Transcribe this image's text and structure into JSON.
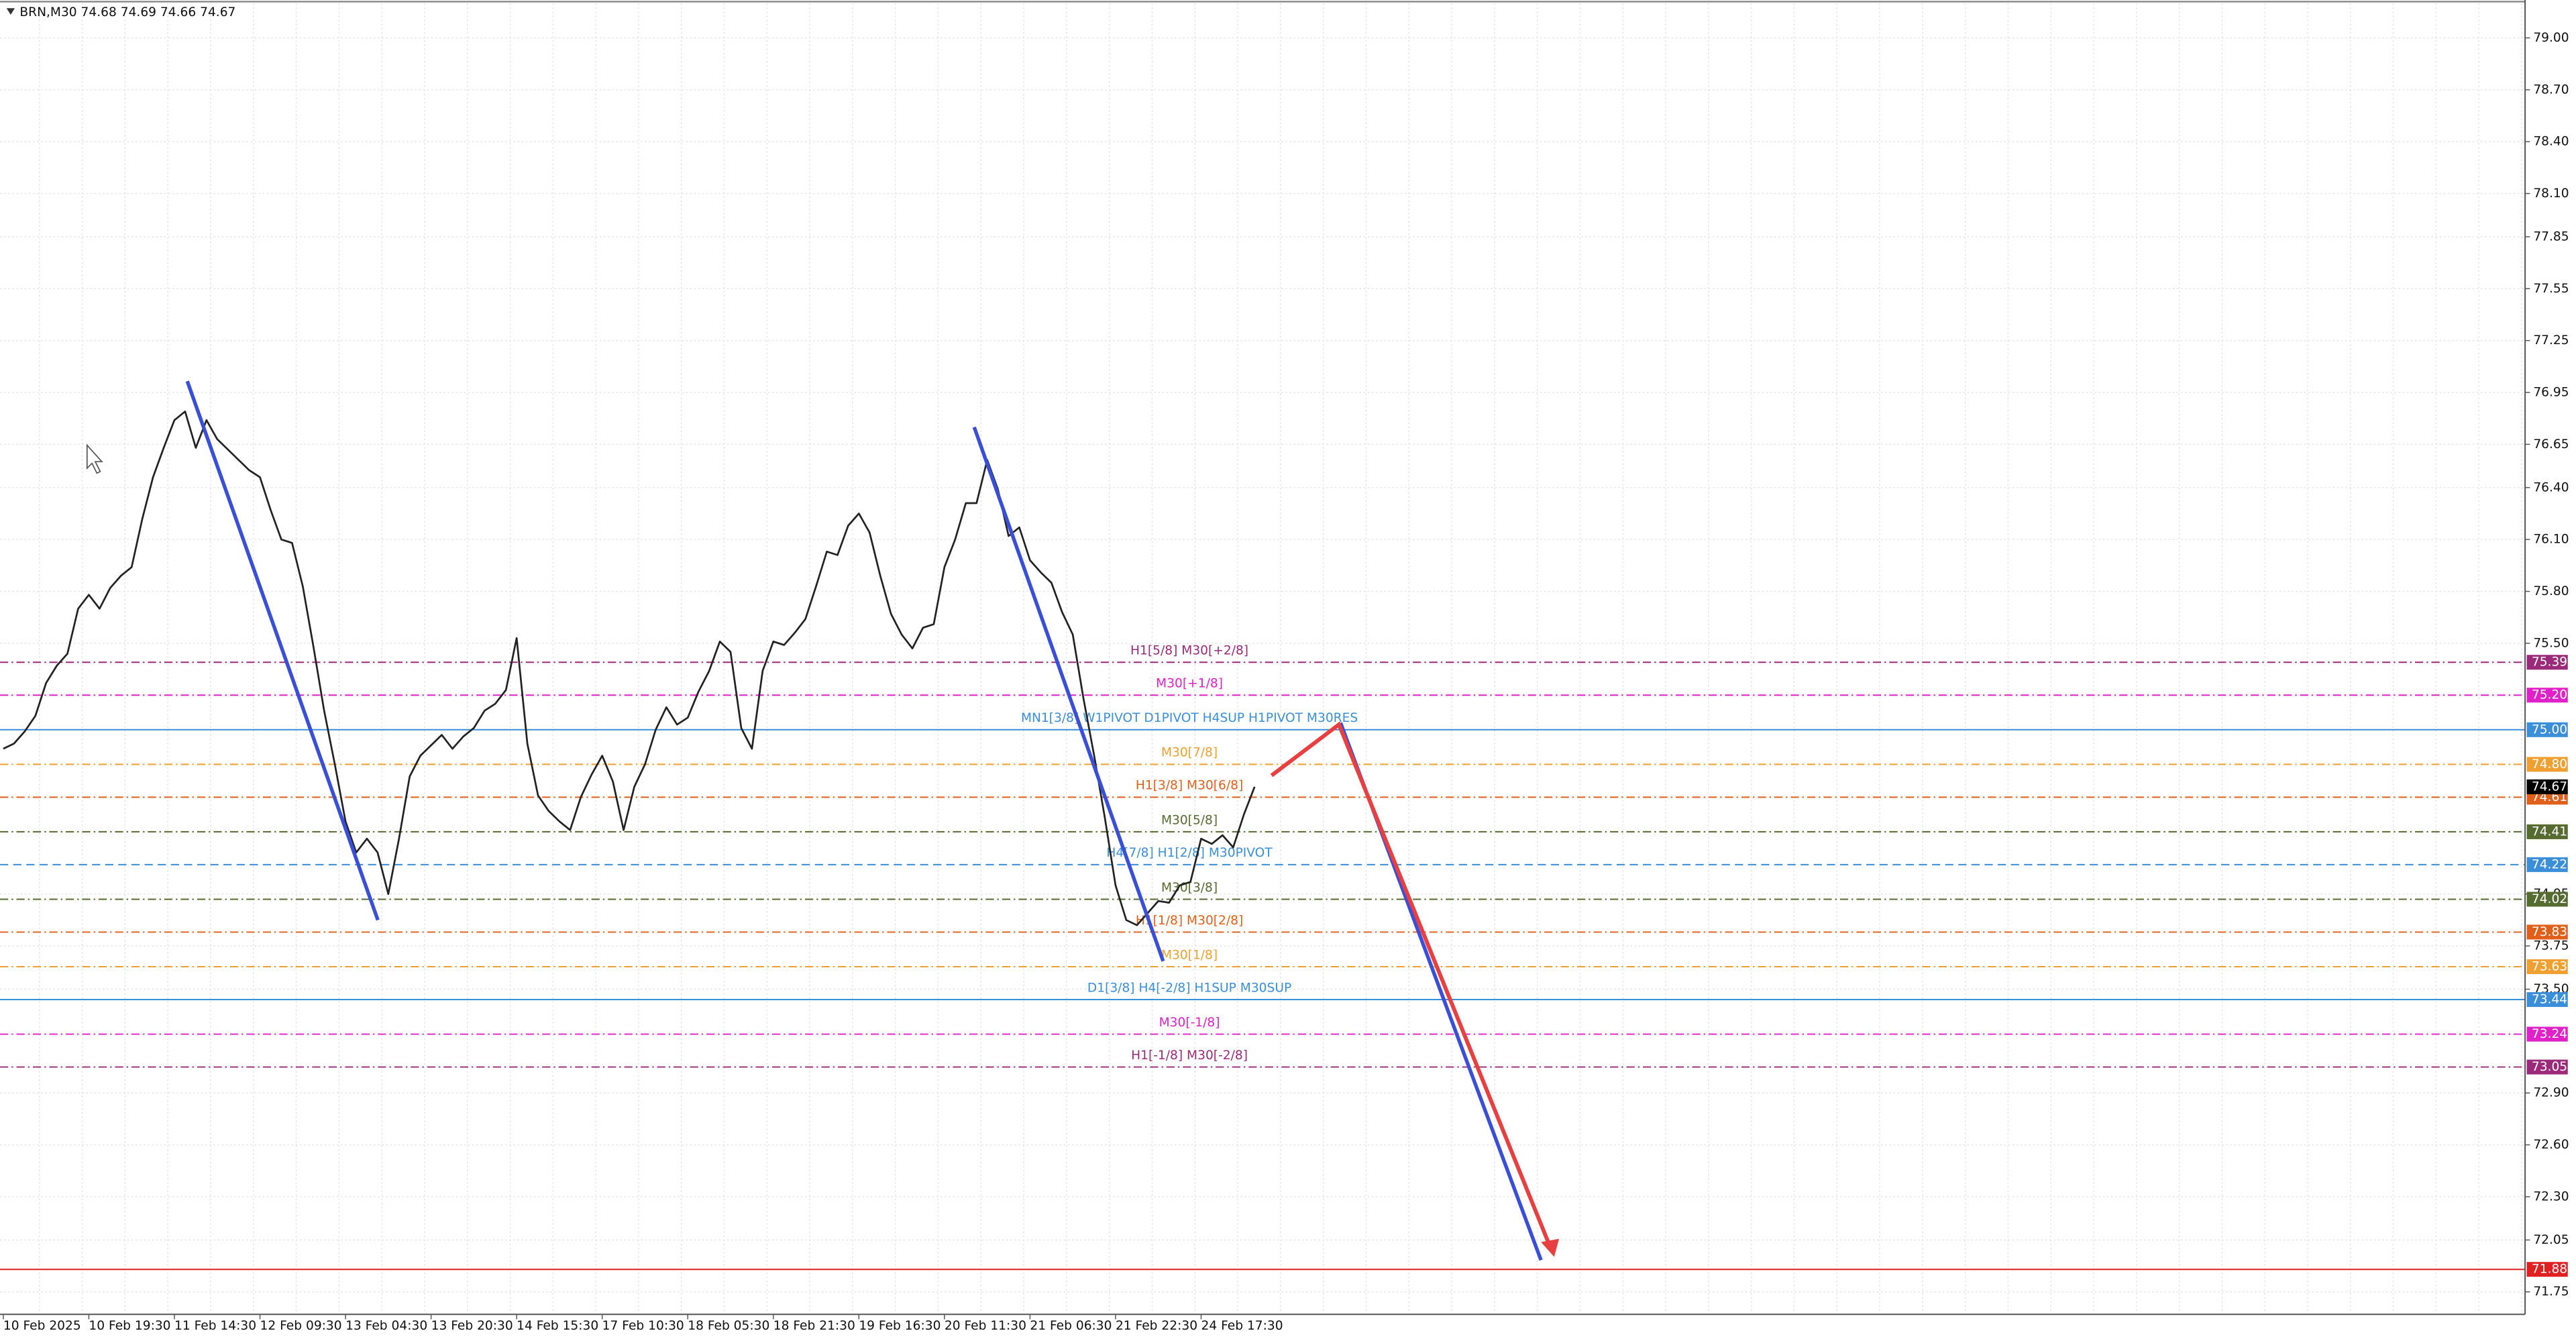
{
  "chart_data": {
    "type": "line",
    "title": "BRN,M30 74.68 74.69 74.66 74.67",
    "categories": [
      "10 Feb 2025",
      null,
      null,
      null,
      null,
      null,
      null,
      null,
      "10 Feb 19:30",
      null,
      null,
      null,
      null,
      null,
      null,
      null,
      "11 Feb 14:30",
      null,
      null,
      null,
      null,
      null,
      null,
      null,
      "12 Feb 09:30",
      null,
      null,
      null,
      null,
      null,
      null,
      null,
      "13 Feb 04:30",
      null,
      null,
      null,
      null,
      null,
      null,
      null,
      "13 Feb 20:30",
      null,
      null,
      null,
      null,
      null,
      null,
      null,
      "14 Feb 15:30",
      null,
      null,
      null,
      null,
      null,
      null,
      null,
      "17 Feb 10:30",
      null,
      null,
      null,
      null,
      null,
      null,
      null,
      "18 Feb 05:30",
      null,
      null,
      null,
      null,
      null,
      null,
      null,
      "18 Feb 21:30",
      null,
      null,
      null,
      null,
      null,
      null,
      null,
      "19 Feb 16:30",
      null,
      null,
      null,
      null,
      null,
      null,
      null,
      "20 Feb 11:30",
      null,
      null,
      null,
      null,
      null,
      null,
      null,
      "21 Feb 06:30",
      null,
      null,
      null,
      null,
      null,
      null,
      null,
      "21 Feb 22:30",
      null,
      null,
      null,
      null,
      null,
      null,
      null,
      "24 Feb 17:30",
      null,
      null,
      null,
      null,
      null
    ],
    "series": [
      {
        "name": "BRN",
        "color": "#222222",
        "values": [
          74.89,
          74.92,
          74.99,
          75.08,
          75.27,
          75.37,
          75.44,
          75.7,
          75.78,
          75.7,
          75.82,
          75.89,
          75.94,
          76.22,
          76.46,
          76.63,
          76.79,
          76.84,
          76.63,
          76.79,
          76.68,
          76.62,
          76.56,
          76.5,
          76.46,
          76.27,
          76.1,
          76.08,
          75.83,
          75.48,
          75.11,
          74.8,
          74.47,
          74.29,
          74.37,
          74.29,
          74.05,
          74.37,
          74.73,
          74.85,
          74.91,
          74.97,
          74.89,
          74.96,
          75.01,
          75.11,
          75.15,
          75.23,
          75.53,
          74.92,
          74.62,
          74.53,
          74.47,
          74.42,
          74.61,
          74.74,
          74.85,
          74.7,
          74.42,
          74.67,
          74.8,
          75.0,
          75.13,
          75.03,
          75.07,
          75.22,
          75.34,
          75.51,
          75.45,
          75.01,
          74.89,
          75.34,
          75.51,
          75.49,
          75.56,
          75.64,
          75.83,
          76.03,
          76.01,
          76.18,
          76.25,
          76.14,
          75.89,
          75.67,
          75.55,
          75.47,
          75.59,
          75.61,
          75.94,
          76.1,
          76.31,
          76.31,
          76.56,
          76.39,
          76.12,
          76.17,
          75.98,
          75.91,
          75.85,
          75.68,
          75.55,
          75.18,
          74.85,
          74.49,
          74.1,
          73.9,
          73.87,
          73.94,
          74.01,
          74.0,
          74.1,
          74.12,
          74.37,
          74.34,
          74.39,
          74.32,
          74.51,
          74.67
        ]
      }
    ],
    "ylim": [
      71.62,
      79.2
    ],
    "yticks": [
      {
        "value": 79,
        "label": "79.00"
      },
      {
        "value": 78.7,
        "label": "78.70"
      },
      {
        "value": 78.4,
        "label": "78.40"
      },
      {
        "value": 78.1,
        "label": "78.10"
      },
      {
        "value": 77.85,
        "label": "77.85"
      },
      {
        "value": 77.55,
        "label": "77.55"
      },
      {
        "value": 77.25,
        "label": "77.25"
      },
      {
        "value": 76.95,
        "label": "76.95"
      },
      {
        "value": 76.65,
        "label": "76.65"
      },
      {
        "value": 76.4,
        "label": "76.40"
      },
      {
        "value": 76.1,
        "label": "76.10"
      },
      {
        "value": 75.8,
        "label": "75.80"
      },
      {
        "value": 75.5,
        "label": "75.50"
      },
      {
        "value": 74.05,
        "label": "74.05"
      },
      {
        "value": 73.75,
        "label": "73.75"
      },
      {
        "value": 73.5,
        "label": "73.50"
      },
      {
        "value": 72.9,
        "label": "72.90"
      },
      {
        "value": 72.6,
        "label": "72.60"
      },
      {
        "value": 72.3,
        "label": "72.30"
      },
      {
        "value": 72.05,
        "label": "72.05"
      },
      {
        "value": 71.75,
        "label": "71.75"
      }
    ],
    "grid": true,
    "levels": [
      {
        "value": 75.39,
        "label": "75.39",
        "text": "H1[5/8] M30[+2/8]",
        "color": "#9b2a7a",
        "style": "dashdot"
      },
      {
        "value": 75.2,
        "label": "75.20",
        "text": "M30[+1/8]",
        "color": "#e020c8",
        "style": "dashdot"
      },
      {
        "value": 75.0,
        "label": "75.00",
        "text": "MN1[3/8] W1PIVOT D1PIVOT H4SUP H1PIVOT M30RES",
        "color": "#3a8fd8",
        "style": "solid"
      },
      {
        "value": 74.8,
        "label": "74.80",
        "text": "M30[7/8]",
        "color": "#f0a030",
        "style": "dashdot"
      },
      {
        "value": 74.61,
        "label": "74.61",
        "text": "H1[3/8] M30[6/8]",
        "color": "#e0601a",
        "style": "dashdot"
      },
      {
        "value": 74.41,
        "label": "74.41",
        "text": "M30[5/8]",
        "color": "#556b2f",
        "style": "dashdot"
      },
      {
        "value": 74.22,
        "label": "74.22",
        "text": "H4[7/8] H1[2/8] M30PIVOT",
        "color": "#3a8fd8",
        "style": "dashed"
      },
      {
        "value": 74.02,
        "label": "74.02",
        "text": "M30[3/8]",
        "color": "#556b2f",
        "style": "dashdot"
      },
      {
        "value": 73.83,
        "label": "73.83",
        "text": "H1[1/8] M30[2/8]",
        "color": "#e0601a",
        "style": "dashdot"
      },
      {
        "value": 73.63,
        "label": "73.63",
        "text": "M30[1/8]",
        "color": "#f0a030",
        "style": "dashdot"
      },
      {
        "value": 73.44,
        "label": "73.44",
        "text": "D1[3/8] H4[-2/8] H1SUP M30SUP",
        "color": "#3a8fd8",
        "style": "solid"
      },
      {
        "value": 73.24,
        "label": "73.24",
        "text": "M30[-1/8]",
        "color": "#e020c8",
        "style": "dashdot"
      },
      {
        "value": 73.05,
        "label": "73.05",
        "text": "H1[-1/8] M30[-2/8]",
        "color": "#9b2a7a",
        "style": "dashdot"
      },
      {
        "value": 71.88,
        "label": "71.88",
        "color": "#e02020",
        "style": "solid"
      }
    ],
    "current": {
      "value": 74.67,
      "label": "74.67",
      "color": "#000000"
    }
  }
}
